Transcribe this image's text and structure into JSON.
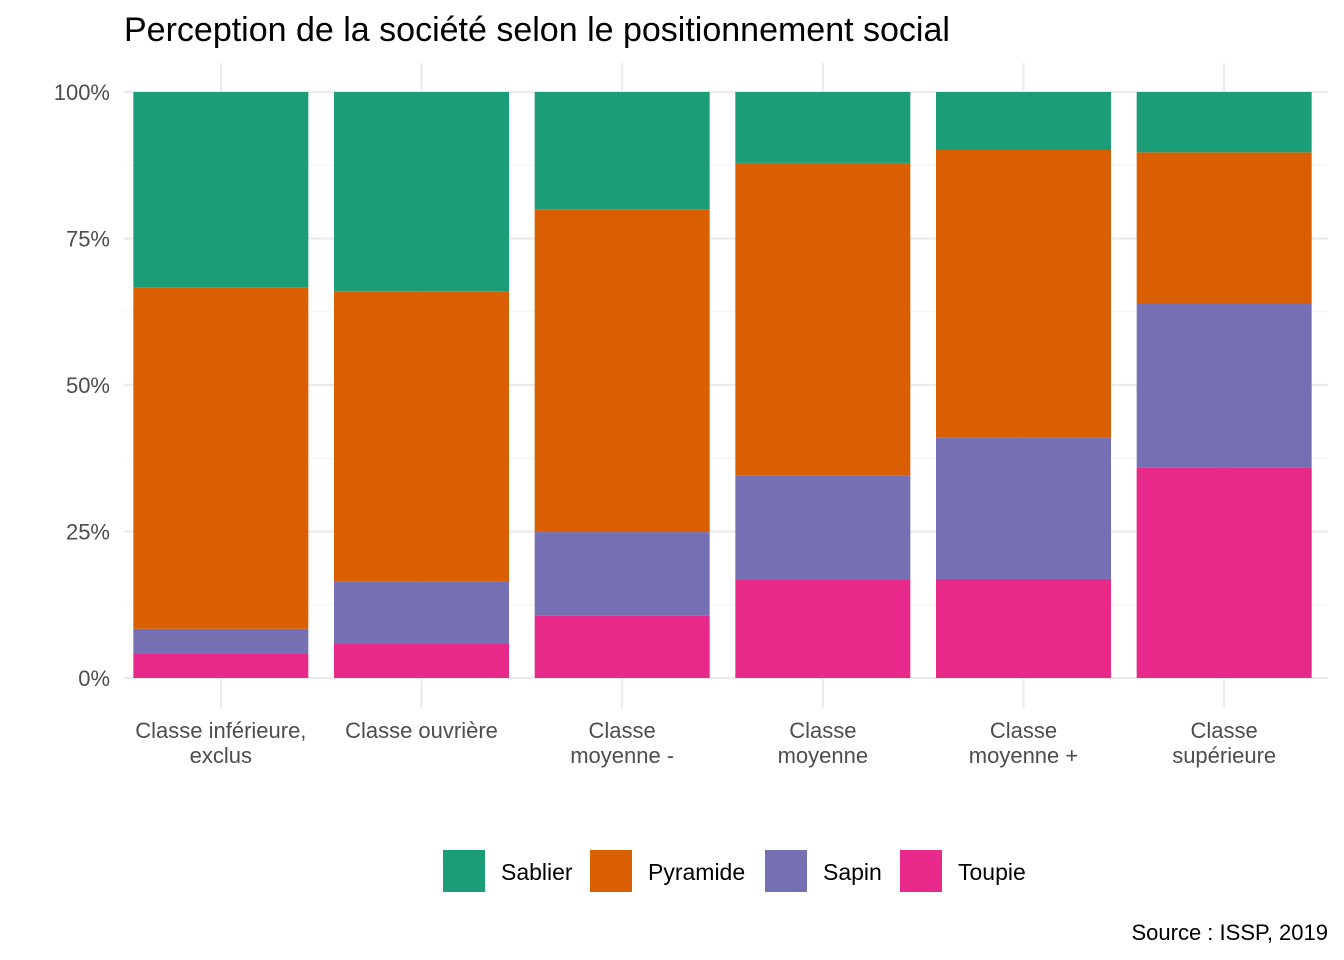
{
  "chart_data": {
    "type": "bar",
    "stacked": true,
    "title": "Perception de la société selon le positionnement social",
    "caption": "Source : ISSP, 2019",
    "xlabel": "",
    "ylabel": "",
    "ylim": [
      0,
      1
    ],
    "yticks": [
      0,
      0.25,
      0.5,
      0.75,
      1
    ],
    "ytick_labels": [
      "0%",
      "25%",
      "50%",
      "75%",
      "100%"
    ],
    "grid": true,
    "legend_position": "bottom",
    "categories": [
      [
        "Classe inférieure,",
        "exclus"
      ],
      [
        "Classe ouvrière"
      ],
      [
        "Classe",
        "moyenne -"
      ],
      [
        "Classe",
        "moyenne"
      ],
      [
        "Classe",
        "moyenne +"
      ],
      [
        "Classe",
        "supérieure"
      ]
    ],
    "series": [
      {
        "name": "Toupie",
        "color": "#E7298A",
        "values": [
          0.042,
          0.058,
          0.106,
          0.168,
          0.169,
          0.359
        ]
      },
      {
        "name": "Sapin",
        "color": "#7570B3",
        "values": [
          0.042,
          0.106,
          0.143,
          0.177,
          0.241,
          0.281
        ]
      },
      {
        "name": "Pyramide",
        "color": "#D95F02",
        "values": [
          0.582,
          0.496,
          0.551,
          0.534,
          0.491,
          0.257
        ]
      },
      {
        "name": "Sablier",
        "color": "#1B9E77",
        "values": [
          0.334,
          0.34,
          0.2,
          0.121,
          0.099,
          0.103
        ]
      }
    ],
    "legend_order": [
      "Sablier",
      "Pyramide",
      "Sapin",
      "Toupie"
    ]
  }
}
